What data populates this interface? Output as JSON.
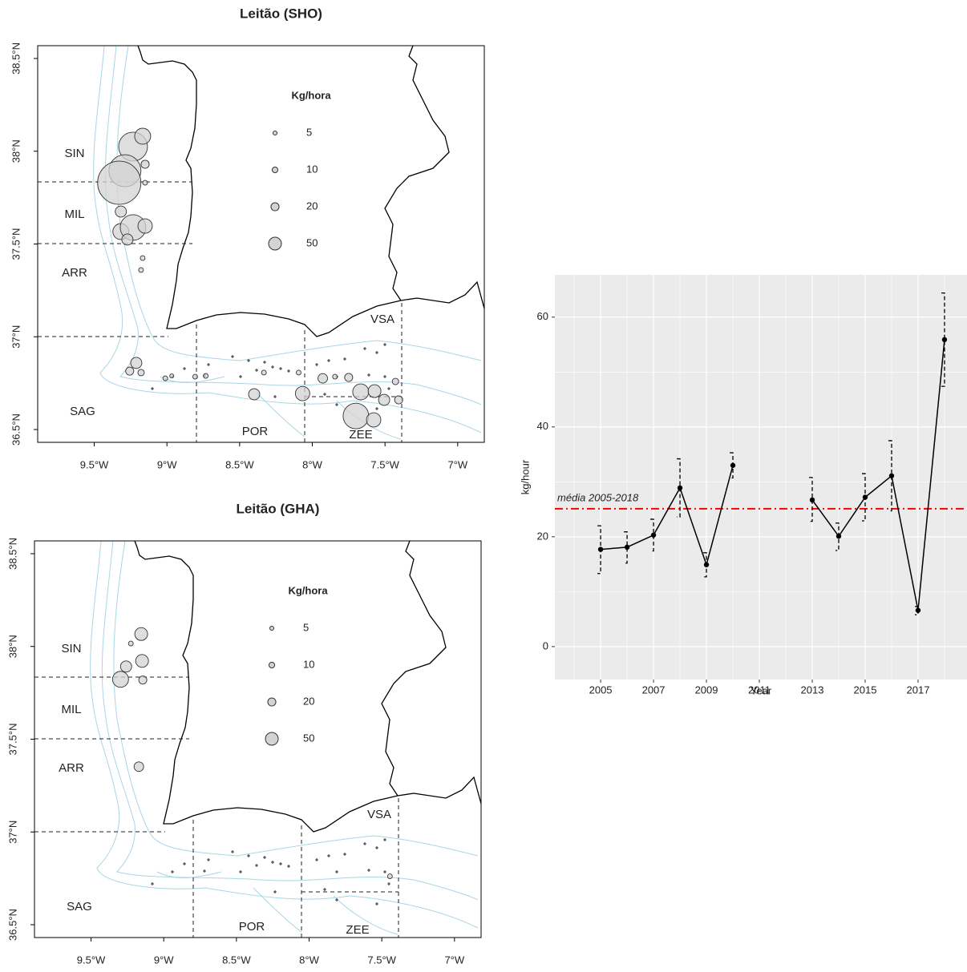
{
  "chart_data": [
    {
      "type": "map",
      "title": "Leitão (SHO)",
      "xlim": [
        -9.889,
        -6.817
      ],
      "ylim": [
        36.431,
        38.569
      ],
      "xticks": [
        {
          "value": -9.5,
          "label": "9.5°W"
        },
        {
          "value": -9,
          "label": "9°W"
        },
        {
          "value": -8.5,
          "label": "8.5°W"
        },
        {
          "value": -8,
          "label": "8°W"
        },
        {
          "value": -7.5,
          "label": "7.5°W"
        },
        {
          "value": -7,
          "label": "7°W"
        }
      ],
      "yticks": [
        {
          "value": 36.5,
          "label": "36.5°N"
        },
        {
          "value": 37,
          "label": "37°N"
        },
        {
          "value": 37.5,
          "label": "37.5°N"
        },
        {
          "value": 38,
          "label": "38°N"
        },
        {
          "value": 38.5,
          "label": "38.5°N"
        }
      ],
      "regions": [
        "SIN",
        "MIL",
        "ARR",
        "SAG",
        "POR",
        "ZEE",
        "VSA"
      ],
      "legend_title": "Kg/hora",
      "legend_sizes": [
        5,
        10,
        20,
        50
      ],
      "x": [
        -9.233,
        -9.167,
        -9.289,
        -9.328,
        -9.15,
        -9.15,
        -9.317,
        -9.317,
        -9.233,
        -9.15,
        -9.272,
        -9.167,
        -9.178,
        -9.211,
        -9.256,
        -9.178,
        -9.011,
        -8.967,
        -8.806,
        -8.733,
        -8.4,
        -8.333,
        -8.094,
        -8.067,
        -7.928,
        -7.844,
        -7.75,
        -7.667,
        -7.572,
        -7.506,
        -7.7,
        -7.578,
        -7.406,
        -7.428
      ],
      "y": [
        38.025,
        38.081,
        37.895,
        37.83,
        37.93,
        37.83,
        37.675,
        37.567,
        37.589,
        37.597,
        37.524,
        37.424,
        37.36,
        36.859,
        36.815,
        36.807,
        36.776,
        36.789,
        36.785,
        36.789,
        36.69,
        36.807,
        36.807,
        36.694,
        36.776,
        36.785,
        36.781,
        36.703,
        36.707,
        36.66,
        36.573,
        36.552,
        36.66,
        36.759
      ],
      "sizes": [
        254,
        78,
        313,
        571,
        20,
        7,
        38,
        78,
        200,
        63,
        38,
        7,
        7,
        38,
        20,
        12.5,
        7,
        5,
        7,
        7,
        38,
        7,
        7,
        63,
        28,
        7,
        20,
        78,
        50,
        38,
        200,
        63,
        20,
        12.5
      ]
    },
    {
      "type": "map",
      "title": "Leitão (GHA)",
      "xlim": [
        -9.889,
        -6.817
      ],
      "ylim": [
        36.431,
        38.569
      ],
      "xticks": [
        {
          "value": -9.5,
          "label": "9.5°W"
        },
        {
          "value": -9,
          "label": "9°W"
        },
        {
          "value": -8.5,
          "label": "8.5°W"
        },
        {
          "value": -8,
          "label": "8°W"
        },
        {
          "value": -7.5,
          "label": "7.5°W"
        },
        {
          "value": -7,
          "label": "7°W"
        }
      ],
      "yticks": [
        {
          "value": 36.5,
          "label": "36.5°N"
        },
        {
          "value": 37,
          "label": "37°N"
        },
        {
          "value": 37.5,
          "label": "37.5°N"
        },
        {
          "value": 38,
          "label": "38°N"
        },
        {
          "value": 38.5,
          "label": "38.5°N"
        }
      ],
      "regions": [
        "SIN",
        "MIL",
        "ARR",
        "SAG",
        "POR",
        "ZEE",
        "VSA"
      ],
      "legend_title": "Kg/hora",
      "legend_sizes": [
        5,
        10,
        20,
        50
      ],
      "x": [
        -9.155,
        -9.226,
        -9.149,
        -9.259,
        -9.297,
        -9.144,
        -9.171,
        -7.444
      ],
      "y": [
        38.067,
        38.016,
        37.922,
        37.892,
        37.823,
        37.819,
        37.352,
        36.761
      ],
      "sizes": [
        50,
        7,
        50,
        38,
        78,
        20,
        28,
        7
      ]
    },
    {
      "type": "line",
      "x_label": "Year",
      "y_label": "kg/hour",
      "x": [
        2005,
        2006,
        2007,
        2008,
        2009,
        2010,
        2011,
        2012,
        2013,
        2014,
        2015,
        2016,
        2017,
        2018
      ],
      "values": [
        17.7,
        18.1,
        20.3,
        28.9,
        14.9,
        33.0,
        null,
        null,
        26.7,
        20.1,
        27.2,
        31.1,
        6.6,
        55.9
      ],
      "lower": [
        13.3,
        15.2,
        17.4,
        23.6,
        12.7,
        30.7,
        null,
        null,
        22.8,
        17.5,
        22.9,
        24.7,
        5.8,
        47.4
      ],
      "upper": [
        22.0,
        20.9,
        23.2,
        34.2,
        17.1,
        35.3,
        null,
        null,
        30.8,
        22.5,
        31.5,
        37.5,
        7.3,
        64.4
      ],
      "color": "#000000",
      "xlim": [
        2003.27,
        2018.85
      ],
      "ylim": [
        -6,
        67.7
      ],
      "xticks": [
        2005,
        2007,
        2009,
        2011,
        2013,
        2015,
        2017
      ],
      "yticks": [
        0,
        20,
        40,
        60
      ],
      "hline": {
        "value": 25.1,
        "label": "média 2005-2018",
        "color": "#ff0000"
      }
    }
  ]
}
